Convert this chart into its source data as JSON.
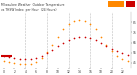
{
  "title": "Milwaukee Weather  Outdoor Temperature\nvs THSW Index  per Hour  (24 Hours)",
  "hours": [
    0,
    1,
    2,
    3,
    4,
    5,
    6,
    7,
    8,
    9,
    10,
    11,
    12,
    13,
    14,
    15,
    16,
    17,
    18,
    19,
    20,
    21,
    22,
    23
  ],
  "temp": [
    52,
    51,
    50,
    49,
    49,
    49,
    50,
    52,
    55,
    58,
    62,
    65,
    68,
    70,
    71,
    71,
    70,
    68,
    65,
    62,
    59,
    57,
    55,
    53
  ],
  "thsw": [
    47,
    46,
    45,
    44,
    44,
    44,
    46,
    50,
    56,
    63,
    71,
    78,
    83,
    86,
    87,
    86,
    83,
    78,
    71,
    63,
    57,
    52,
    49,
    47
  ],
  "temp_color": "#cc0000",
  "thsw_color": "#ff8800",
  "bg_color": "#ffffff",
  "grid_color": "#bbbbbb",
  "ylim": [
    40,
    95
  ],
  "yticks": [
    45,
    55,
    65,
    75,
    85
  ],
  "ytick_labels": [
    "45",
    "55",
    "65",
    "75",
    "85"
  ],
  "legend_thsw_color": "#ff8800",
  "legend_temp_color": "#cc0000",
  "legend_thsw_color2": "#ffaa00",
  "dot_size": 1.5
}
